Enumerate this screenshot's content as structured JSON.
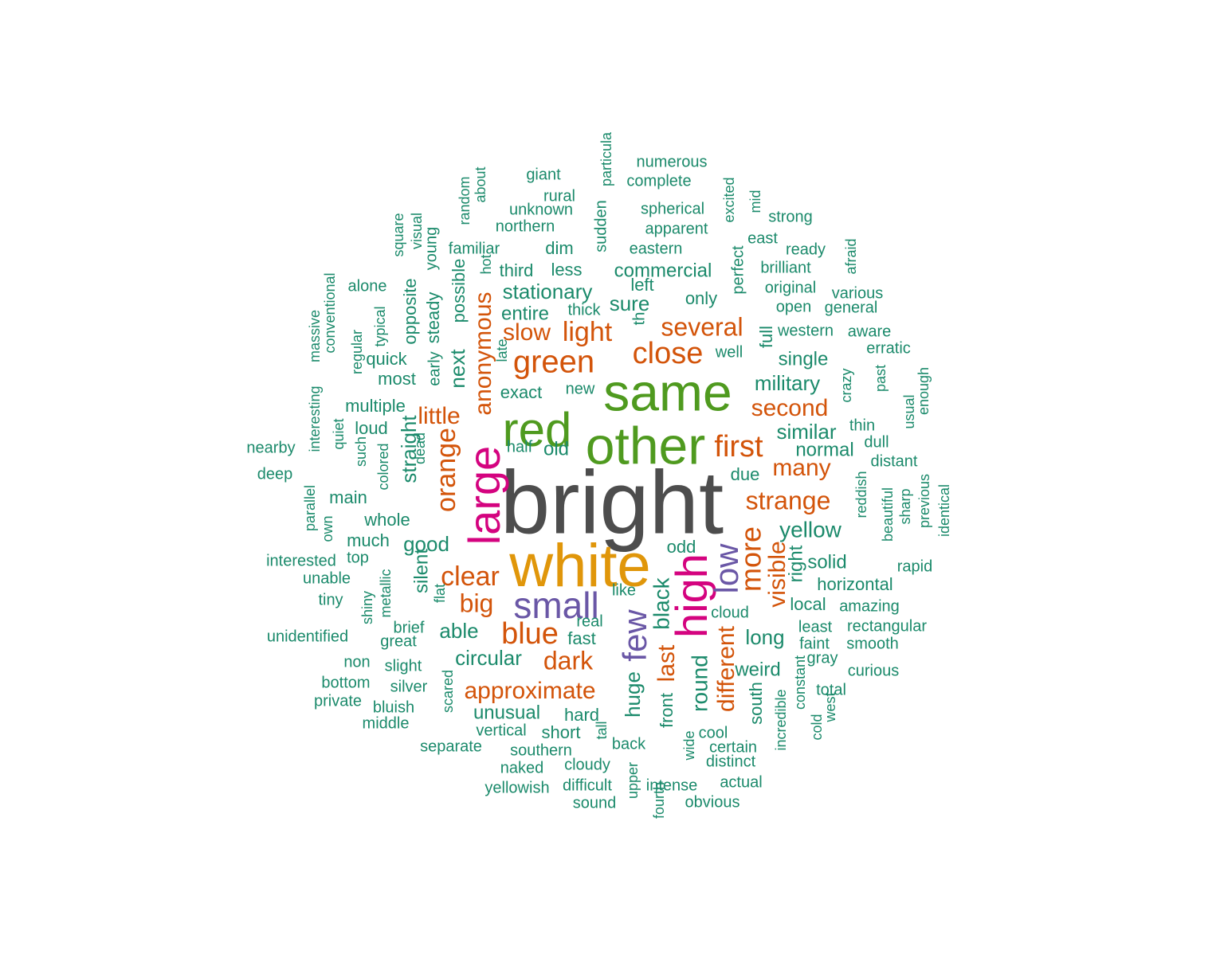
{
  "colors": {
    "background": "#ffffff",
    "gray": "#4d4d4d",
    "green": "#4f9a1f",
    "orange": "#e0960a",
    "magenta": "#d4037f",
    "purple": "#6a57a6",
    "rust": "#d3540a",
    "teal": "#1b8a6b"
  },
  "words": [
    {
      "text": "bright",
      "color": "gray",
      "weight": 1.0
    },
    {
      "text": "white",
      "color": "orange",
      "weight": 0.7
    },
    {
      "text": "other",
      "color": "green",
      "weight": 0.66
    },
    {
      "text": "same",
      "color": "green",
      "weight": 0.66
    },
    {
      "text": "red",
      "color": "green",
      "weight": 0.62
    },
    {
      "text": "large",
      "color": "magenta",
      "weight": 0.6
    },
    {
      "text": "high",
      "color": "magenta",
      "weight": 0.58
    },
    {
      "text": "small",
      "color": "purple",
      "weight": 0.5
    },
    {
      "text": "low",
      "color": "purple",
      "weight": 0.45
    },
    {
      "text": "few",
      "color": "purple",
      "weight": 0.45
    },
    {
      "text": "green",
      "color": "rust",
      "weight": 0.42
    },
    {
      "text": "close",
      "color": "rust",
      "weight": 0.42
    },
    {
      "text": "blue",
      "color": "rust",
      "weight": 0.42
    },
    {
      "text": "first",
      "color": "rust",
      "weight": 0.4
    },
    {
      "text": "more",
      "color": "rust",
      "weight": 0.4
    },
    {
      "text": "orange",
      "color": "rust",
      "weight": 0.38
    },
    {
      "text": "clear",
      "color": "rust",
      "weight": 0.38
    },
    {
      "text": "light",
      "color": "rust",
      "weight": 0.36
    },
    {
      "text": "several",
      "color": "rust",
      "weight": 0.36
    },
    {
      "text": "anonymous",
      "color": "rust",
      "weight": 0.35
    },
    {
      "text": "strange",
      "color": "rust",
      "weight": 0.35
    },
    {
      "text": "approximate",
      "color": "rust",
      "weight": 0.35
    },
    {
      "text": "dark",
      "color": "rust",
      "weight": 0.35
    },
    {
      "text": "visible",
      "color": "rust",
      "weight": 0.35
    },
    {
      "text": "big",
      "color": "rust",
      "weight": 0.34
    },
    {
      "text": "many",
      "color": "rust",
      "weight": 0.33
    },
    {
      "text": "second",
      "color": "rust",
      "weight": 0.33
    },
    {
      "text": "slow",
      "color": "rust",
      "weight": 0.33
    },
    {
      "text": "little",
      "color": "rust",
      "weight": 0.33
    },
    {
      "text": "different",
      "color": "rust",
      "weight": 0.33
    },
    {
      "text": "last",
      "color": "rust",
      "weight": 0.33
    },
    {
      "text": "black",
      "color": "teal",
      "weight": 0.3
    },
    {
      "text": "round",
      "color": "teal",
      "weight": 0.3
    },
    {
      "text": "huge",
      "color": "teal",
      "weight": 0.28
    },
    {
      "text": "yellow",
      "color": "teal",
      "weight": 0.28
    },
    {
      "text": "stationary",
      "color": "teal",
      "weight": 0.28
    },
    {
      "text": "commercial",
      "color": "teal",
      "weight": 0.26
    },
    {
      "text": "military",
      "color": "teal",
      "weight": 0.28
    },
    {
      "text": "similar",
      "color": "teal",
      "weight": 0.28
    },
    {
      "text": "circular",
      "color": "teal",
      "weight": 0.28
    },
    {
      "text": "good",
      "color": "teal",
      "weight": 0.28
    },
    {
      "text": "able",
      "color": "teal",
      "weight": 0.28
    },
    {
      "text": "long",
      "color": "teal",
      "weight": 0.28
    },
    {
      "text": "straight",
      "color": "teal",
      "weight": 0.28
    },
    {
      "text": "next",
      "color": "teal",
      "weight": 0.28
    },
    {
      "text": "sure",
      "color": "teal",
      "weight": 0.28
    },
    {
      "text": "right",
      "color": "teal",
      "weight": 0.26
    },
    {
      "text": "unusual",
      "color": "teal",
      "weight": 0.26
    },
    {
      "text": "single",
      "color": "teal",
      "weight": 0.26
    },
    {
      "text": "normal",
      "color": "teal",
      "weight": 0.26
    },
    {
      "text": "entire",
      "color": "teal",
      "weight": 0.26
    },
    {
      "text": "silent",
      "color": "teal",
      "weight": 0.26
    },
    {
      "text": "solid",
      "color": "teal",
      "weight": 0.26
    },
    {
      "text": "weird",
      "color": "teal",
      "weight": 0.26
    },
    {
      "text": "hard",
      "color": "teal",
      "weight": 0.25
    },
    {
      "text": "short",
      "color": "teal",
      "weight": 0.25
    },
    {
      "text": "fast",
      "color": "teal",
      "weight": 0.25
    },
    {
      "text": "exact",
      "color": "teal",
      "weight": 0.25
    },
    {
      "text": "old",
      "color": "teal",
      "weight": 0.25
    },
    {
      "text": "only",
      "color": "teal",
      "weight": 0.25
    },
    {
      "text": "left",
      "color": "teal",
      "weight": 0.25
    },
    {
      "text": "less",
      "color": "teal",
      "weight": 0.25
    },
    {
      "text": "dim",
      "color": "teal",
      "weight": 0.25
    },
    {
      "text": "whole",
      "color": "teal",
      "weight": 0.25
    },
    {
      "text": "odd",
      "color": "teal",
      "weight": 0.25
    },
    {
      "text": "local",
      "color": "teal",
      "weight": 0.25
    },
    {
      "text": "horizontal",
      "color": "teal",
      "weight": 0.24
    },
    {
      "text": "steady",
      "color": "teal",
      "weight": 0.24
    },
    {
      "text": "possible",
      "color": "teal",
      "weight": 0.24
    },
    {
      "text": "opposite",
      "color": "teal",
      "weight": 0.22
    },
    {
      "text": "front",
      "color": "teal",
      "weight": 0.22
    },
    {
      "text": "south",
      "color": "teal",
      "weight": 0.22
    },
    {
      "text": "full",
      "color": "teal",
      "weight": 0.22
    },
    {
      "text": "third",
      "color": "teal",
      "weight": 0.22
    },
    {
      "text": "multiple",
      "color": "teal",
      "weight": 0.22
    },
    {
      "text": "much",
      "color": "teal",
      "weight": 0.22
    },
    {
      "text": "main",
      "color": "teal",
      "weight": 0.22
    },
    {
      "text": "most",
      "color": "teal",
      "weight": 0.22
    },
    {
      "text": "loud",
      "color": "teal",
      "weight": 0.22
    },
    {
      "text": "quick",
      "color": "teal",
      "weight": 0.22
    },
    {
      "text": "early",
      "color": "teal",
      "weight": 0.22
    },
    {
      "text": "half",
      "color": "teal",
      "weight": 0.22
    },
    {
      "text": "new",
      "color": "teal",
      "weight": 0.22
    },
    {
      "text": "well",
      "color": "teal",
      "weight": 0.22
    },
    {
      "text": "due",
      "color": "teal",
      "weight": 0.22
    },
    {
      "text": "western",
      "color": "teal",
      "weight": 0.22
    },
    {
      "text": "perfect",
      "color": "teal",
      "weight": 0.22
    },
    {
      "text": "original",
      "color": "teal",
      "weight": 0.22
    },
    {
      "text": "open",
      "color": "teal",
      "weight": 0.22
    },
    {
      "text": "eastern",
      "color": "teal",
      "weight": 0.22
    },
    {
      "text": "apparent",
      "color": "teal",
      "weight": 0.22
    },
    {
      "text": "spherical",
      "color": "teal",
      "weight": 0.22
    },
    {
      "text": "brilliant",
      "color": "teal",
      "weight": 0.22
    },
    {
      "text": "unknown",
      "color": "teal",
      "weight": 0.22
    },
    {
      "text": "northern",
      "color": "teal",
      "weight": 0.22
    },
    {
      "text": "familiar",
      "color": "teal",
      "weight": 0.22
    },
    {
      "text": "sudden",
      "color": "teal",
      "weight": 0.22
    },
    {
      "text": "young",
      "color": "teal",
      "weight": 0.22
    },
    {
      "text": "visual",
      "color": "teal",
      "weight": 0.2
    },
    {
      "text": "square",
      "color": "teal",
      "weight": 0.2
    },
    {
      "text": "random",
      "color": "teal",
      "weight": 0.2
    },
    {
      "text": "about",
      "color": "teal",
      "weight": 0.2
    },
    {
      "text": "giant",
      "color": "teal",
      "weight": 0.2
    },
    {
      "text": "rural",
      "color": "teal",
      "weight": 0.2
    },
    {
      "text": "particula",
      "color": "teal",
      "weight": 0.2
    },
    {
      "text": "numerous",
      "color": "teal",
      "weight": 0.2
    },
    {
      "text": "complete",
      "color": "teal",
      "weight": 0.2
    },
    {
      "text": "excited",
      "color": "teal",
      "weight": 0.2
    },
    {
      "text": "mid",
      "color": "teal",
      "weight": 0.2
    },
    {
      "text": "strong",
      "color": "teal",
      "weight": 0.2
    },
    {
      "text": "east",
      "color": "teal",
      "weight": 0.2
    },
    {
      "text": "ready",
      "color": "teal",
      "weight": 0.2
    },
    {
      "text": "afraid",
      "color": "teal",
      "weight": 0.2
    },
    {
      "text": "various",
      "color": "teal",
      "weight": 0.2
    },
    {
      "text": "general",
      "color": "teal",
      "weight": 0.2
    },
    {
      "text": "aware",
      "color": "teal",
      "weight": 0.2
    },
    {
      "text": "erratic",
      "color": "teal",
      "weight": 0.2
    },
    {
      "text": "crazy",
      "color": "teal",
      "weight": 0.2
    },
    {
      "text": "past",
      "color": "teal",
      "weight": 0.2
    },
    {
      "text": "enough",
      "color": "teal",
      "weight": 0.2
    },
    {
      "text": "usual",
      "color": "teal",
      "weight": 0.2
    },
    {
      "text": "thin",
      "color": "teal",
      "weight": 0.2
    },
    {
      "text": "dull",
      "color": "teal",
      "weight": 0.2
    },
    {
      "text": "distant",
      "color": "teal",
      "weight": 0.2
    },
    {
      "text": "reddish",
      "color": "teal",
      "weight": 0.2
    },
    {
      "text": "beautiful",
      "color": "teal",
      "weight": 0.2
    },
    {
      "text": "sharp",
      "color": "teal",
      "weight": 0.2
    },
    {
      "text": "previous",
      "color": "teal",
      "weight": 0.2
    },
    {
      "text": "identical",
      "color": "teal",
      "weight": 0.2
    },
    {
      "text": "rapid",
      "color": "teal",
      "weight": 0.2
    },
    {
      "text": "amazing",
      "color": "teal",
      "weight": 0.2
    },
    {
      "text": "rectangular",
      "color": "teal",
      "weight": 0.2
    },
    {
      "text": "least",
      "color": "teal",
      "weight": 0.2
    },
    {
      "text": "smooth",
      "color": "teal",
      "weight": 0.2
    },
    {
      "text": "faint",
      "color": "teal",
      "weight": 0.2
    },
    {
      "text": "gray",
      "color": "teal",
      "weight": 0.2
    },
    {
      "text": "curious",
      "color": "teal",
      "weight": 0.2
    },
    {
      "text": "constant",
      "color": "teal",
      "weight": 0.2
    },
    {
      "text": "total",
      "color": "teal",
      "weight": 0.2
    },
    {
      "text": "west",
      "color": "teal",
      "weight": 0.2
    },
    {
      "text": "cold",
      "color": "teal",
      "weight": 0.2
    },
    {
      "text": "incredible",
      "color": "teal",
      "weight": 0.2
    },
    {
      "text": "cloud",
      "color": "teal",
      "weight": 0.2
    },
    {
      "text": "cool",
      "color": "teal",
      "weight": 0.2
    },
    {
      "text": "certain",
      "color": "teal",
      "weight": 0.2
    },
    {
      "text": "distinct",
      "color": "teal",
      "weight": 0.2
    },
    {
      "text": "actual",
      "color": "teal",
      "weight": 0.2
    },
    {
      "text": "wide",
      "color": "teal",
      "weight": 0.2
    },
    {
      "text": "obvious",
      "color": "teal",
      "weight": 0.2
    },
    {
      "text": "intense",
      "color": "teal",
      "weight": 0.2
    },
    {
      "text": "fourth",
      "color": "teal",
      "weight": 0.2
    },
    {
      "text": "upper",
      "color": "teal",
      "weight": 0.2
    },
    {
      "text": "back",
      "color": "teal",
      "weight": 0.2
    },
    {
      "text": "tall",
      "color": "teal",
      "weight": 0.2
    },
    {
      "text": "cloudy",
      "color": "teal",
      "weight": 0.2
    },
    {
      "text": "difficult",
      "color": "teal",
      "weight": 0.2
    },
    {
      "text": "sound",
      "color": "teal",
      "weight": 0.2
    },
    {
      "text": "naked",
      "color": "teal",
      "weight": 0.2
    },
    {
      "text": "yellowish",
      "color": "teal",
      "weight": 0.2
    },
    {
      "text": "southern",
      "color": "teal",
      "weight": 0.2
    },
    {
      "text": "vertical",
      "color": "teal",
      "weight": 0.2
    },
    {
      "text": "separate",
      "color": "teal",
      "weight": 0.2
    },
    {
      "text": "scared",
      "color": "teal",
      "weight": 0.2
    },
    {
      "text": "real",
      "color": "teal",
      "weight": 0.2
    },
    {
      "text": "like",
      "color": "teal",
      "weight": 0.2
    },
    {
      "text": "flat",
      "color": "teal",
      "weight": 0.2
    },
    {
      "text": "brief",
      "color": "teal",
      "weight": 0.2
    },
    {
      "text": "great",
      "color": "teal",
      "weight": 0.2
    },
    {
      "text": "slight",
      "color": "teal",
      "weight": 0.2
    },
    {
      "text": "silver",
      "color": "teal",
      "weight": 0.2
    },
    {
      "text": "bluish",
      "color": "teal",
      "weight": 0.2
    },
    {
      "text": "middle",
      "color": "teal",
      "weight": 0.2
    },
    {
      "text": "metallic",
      "color": "teal",
      "weight": 0.2
    },
    {
      "text": "shiny",
      "color": "teal",
      "weight": 0.2
    },
    {
      "text": "non",
      "color": "teal",
      "weight": 0.2
    },
    {
      "text": "bottom",
      "color": "teal",
      "weight": 0.2
    },
    {
      "text": "private",
      "color": "teal",
      "weight": 0.2
    },
    {
      "text": "unidentified",
      "color": "teal",
      "weight": 0.2
    },
    {
      "text": "tiny",
      "color": "teal",
      "weight": 0.2
    },
    {
      "text": "unable",
      "color": "teal",
      "weight": 0.2
    },
    {
      "text": "interested",
      "color": "teal",
      "weight": 0.2
    },
    {
      "text": "top",
      "color": "teal",
      "weight": 0.2
    },
    {
      "text": "own",
      "color": "teal",
      "weight": 0.2
    },
    {
      "text": "parallel",
      "color": "teal",
      "weight": 0.2
    },
    {
      "text": "deep",
      "color": "teal",
      "weight": 0.2
    },
    {
      "text": "nearby",
      "color": "teal",
      "weight": 0.2
    },
    {
      "text": "interesting",
      "color": "teal",
      "weight": 0.2
    },
    {
      "text": "quiet",
      "color": "teal",
      "weight": 0.2
    },
    {
      "text": "such",
      "color": "teal",
      "weight": 0.2
    },
    {
      "text": "colored",
      "color": "teal",
      "weight": 0.2
    },
    {
      "text": "dead",
      "color": "teal",
      "weight": 0.2
    },
    {
      "text": "regular",
      "color": "teal",
      "weight": 0.2
    },
    {
      "text": "typical",
      "color": "teal",
      "weight": 0.2
    },
    {
      "text": "massive",
      "color": "teal",
      "weight": 0.2
    },
    {
      "text": "conventional",
      "color": "teal",
      "weight": 0.2
    },
    {
      "text": "alone",
      "color": "teal",
      "weight": 0.2
    },
    {
      "text": "late",
      "color": "teal",
      "weight": 0.2
    },
    {
      "text": "hot",
      "color": "teal",
      "weight": 0.2
    },
    {
      "text": "thick",
      "color": "teal",
      "weight": 0.2
    },
    {
      "text": "th",
      "color": "teal",
      "weight": 0.2
    }
  ]
}
